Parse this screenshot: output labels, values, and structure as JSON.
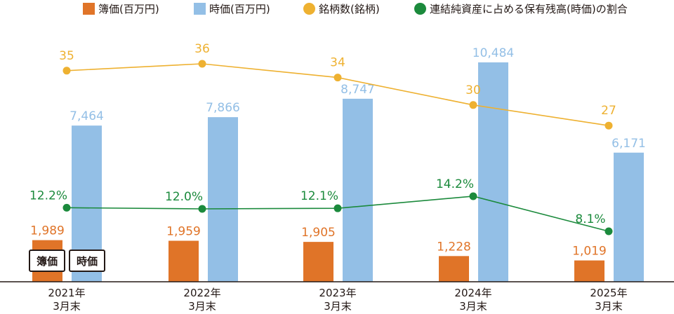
{
  "legend": [
    {
      "label": "簿価(百万円)",
      "color": "#e07428",
      "shape": "square"
    },
    {
      "label": "時価(百万円)",
      "color": "#93bfe6",
      "shape": "square"
    },
    {
      "label": "銘柄数(銘柄)",
      "color": "#eeb131",
      "shape": "circle"
    },
    {
      "label": "連結純資産に占める保有残高(時価)の割合",
      "color": "#1b8a3c",
      "shape": "circle"
    }
  ],
  "colors": {
    "book": "#e07428",
    "market": "#93bfe6",
    "count": "#eeb131",
    "ratio": "#1b8a3c",
    "axis": "#231815"
  },
  "inline_labels": {
    "book": "簿価",
    "market": "時価"
  },
  "chart_data": {
    "type": "bar",
    "categories": [
      [
        "2021年",
        "3月末"
      ],
      [
        "2022年",
        "3月末"
      ],
      [
        "2023年",
        "3月末"
      ],
      [
        "2024年",
        "3月末"
      ],
      [
        "2025年",
        "3月末"
      ]
    ],
    "series": [
      {
        "name": "簿価(百万円)",
        "type": "bar",
        "values": [
          1989,
          1959,
          1905,
          1228,
          1019
        ],
        "labels": [
          "1,989",
          "1,959",
          "1,905",
          "1,228",
          "1,019"
        ]
      },
      {
        "name": "時価(百万円)",
        "type": "bar",
        "values": [
          7464,
          7866,
          8747,
          10484,
          6171
        ],
        "labels": [
          "7,464",
          "7,866",
          "8,747",
          "10,484",
          "6,171"
        ]
      },
      {
        "name": "銘柄数(銘柄)",
        "type": "line",
        "values": [
          35,
          36,
          34,
          30,
          27
        ],
        "labels": [
          "35",
          "36",
          "34",
          "30",
          "27"
        ]
      },
      {
        "name": "連結純資産に占める保有残高(時価)の割合",
        "type": "line",
        "values": [
          12.2,
          12.0,
          12.1,
          14.2,
          8.1
        ],
        "labels": [
          "12.2%",
          "12.0%",
          "12.1%",
          "14.2%",
          "8.1%"
        ]
      }
    ],
    "grid": false,
    "legend_position": "top"
  }
}
